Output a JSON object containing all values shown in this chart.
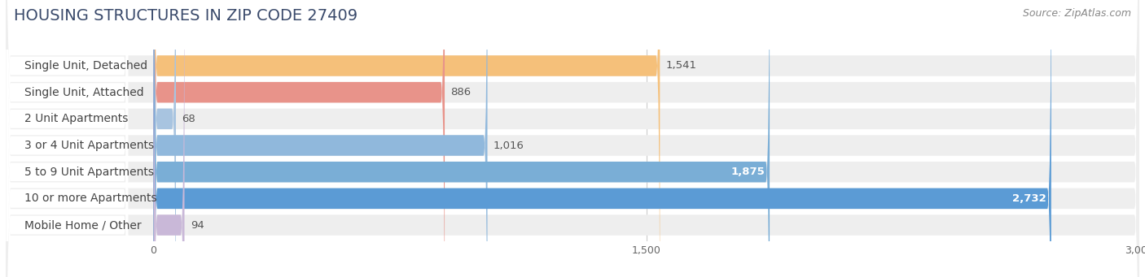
{
  "title": "HOUSING STRUCTURES IN ZIP CODE 27409",
  "source": "Source: ZipAtlas.com",
  "categories": [
    "Single Unit, Detached",
    "Single Unit, Attached",
    "2 Unit Apartments",
    "3 or 4 Unit Apartments",
    "5 to 9 Unit Apartments",
    "10 or more Apartments",
    "Mobile Home / Other"
  ],
  "values": [
    1541,
    886,
    68,
    1016,
    1875,
    2732,
    94
  ],
  "bar_colors": [
    "#f5c07a",
    "#e8938a",
    "#a8c4e0",
    "#90b8dc",
    "#7aaed6",
    "#5b9bd5",
    "#c9b8d8"
  ],
  "label_in_bar": [
    false,
    false,
    false,
    false,
    true,
    true,
    false
  ],
  "background_color": "#ffffff",
  "row_bg_color": "#eeeeee",
  "xlim_min": -450,
  "xlim_max": 3000,
  "xticks": [
    0,
    1500,
    3000
  ],
  "title_fontsize": 14,
  "source_fontsize": 9,
  "label_fontsize": 10,
  "value_fontsize": 9.5,
  "title_color": "#3a4a6b",
  "source_color": "#888888",
  "label_color": "#444444",
  "value_color_outside": "#555555",
  "value_color_inside": "#ffffff"
}
